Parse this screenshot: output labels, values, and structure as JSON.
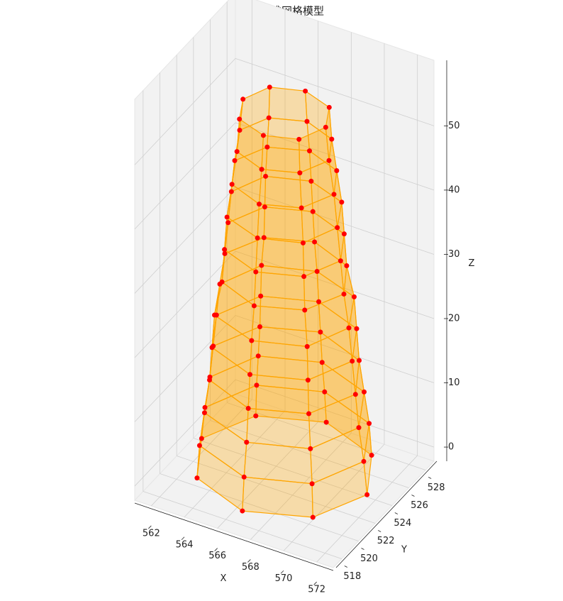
{
  "chart_data": {
    "type": "mesh3d",
    "title": "古塔三维网格模型",
    "x_label": "X",
    "y_label": "Y",
    "z_label": "Z",
    "xlim": [
      561,
      573
    ],
    "ylim": [
      517,
      529
    ],
    "zlim": [
      -2.2,
      60.2
    ],
    "xticks": [
      562,
      564,
      566,
      568,
      570,
      572
    ],
    "yticks": [
      518,
      520,
      522,
      524,
      526,
      528
    ],
    "zticks": [
      0,
      10,
      20,
      30,
      40,
      50
    ],
    "grid": true,
    "face_color": "#ffa500",
    "edge_color": "#ffa500",
    "point_color": "#ff0000",
    "rings": [
      {
        "z": 0,
        "x": [
          572,
          570.5,
          567,
          563.5,
          562,
          563.5,
          567,
          570.5
        ],
        "y": [
          523,
          526.5,
          528,
          526.5,
          523,
          519.5,
          518,
          519.5
        ]
      },
      {
        "z": 5,
        "x": [
          571.8,
          570.4,
          567,
          563.6,
          562.2,
          563.6,
          567,
          570.4
        ],
        "y": [
          523,
          526.4,
          527.8,
          526.4,
          523,
          519.6,
          518.2,
          519.6
        ]
      },
      {
        "z": 10,
        "x": [
          571.5,
          570.2,
          567,
          563.8,
          562.5,
          563.8,
          567,
          570.2
        ],
        "y": [
          523,
          526.2,
          527.5,
          526.2,
          523,
          519.8,
          518.5,
          519.8
        ]
      },
      {
        "z": 15,
        "x": [
          571.3,
          570,
          567,
          564,
          562.7,
          564,
          567,
          570
        ],
        "y": [
          523,
          526,
          527.3,
          526,
          523,
          520,
          518.7,
          520
        ]
      },
      {
        "z": 20,
        "x": [
          571.1,
          569.9,
          567,
          564.1,
          562.9,
          564.1,
          567,
          569.9
        ],
        "y": [
          523,
          525.9,
          527.1,
          525.9,
          523,
          520.1,
          518.9,
          520.1
        ]
      },
      {
        "z": 25,
        "x": [
          570.9,
          569.8,
          567,
          564.2,
          563.1,
          564.2,
          567,
          569.8
        ],
        "y": [
          523,
          525.8,
          526.9,
          525.8,
          523,
          520.2,
          519.1,
          520.2
        ]
      },
      {
        "z": 30,
        "x": [
          570.6,
          569.5,
          567,
          564.5,
          563.4,
          564.5,
          567,
          569.5
        ],
        "y": [
          523,
          525.5,
          526.6,
          525.5,
          523,
          520.5,
          519.4,
          520.5
        ]
      },
      {
        "z": 35,
        "x": [
          570.4,
          569.4,
          567,
          564.6,
          563.6,
          564.6,
          567,
          569.4
        ],
        "y": [
          523,
          525.4,
          526.4,
          525.4,
          523,
          520.6,
          519.6,
          520.6
        ]
      },
      {
        "z": 40,
        "x": [
          570.2,
          569.3,
          567,
          564.7,
          563.8,
          564.7,
          567,
          569.3
        ],
        "y": [
          523,
          525.3,
          526.2,
          525.3,
          523,
          520.7,
          519.8,
          520.7
        ]
      },
      {
        "z": 45,
        "x": [
          570,
          569.1,
          567,
          564.9,
          564,
          564.9,
          567,
          569.1
        ],
        "y": [
          523,
          525.1,
          526,
          525.1,
          523,
          520.9,
          520,
          520.9
        ]
      },
      {
        "z": 50,
        "x": [
          569.7,
          568.9,
          567,
          565.1,
          564.3,
          565.1,
          567,
          568.9
        ],
        "y": [
          523,
          524.9,
          525.7,
          524.9,
          523,
          521.1,
          520.3,
          521.1
        ]
      },
      {
        "z": 55,
        "x": [
          569.5,
          568.8,
          567,
          565.2,
          564.5,
          565.2,
          567,
          568.8
        ],
        "y": [
          523,
          524.8,
          525.5,
          524.8,
          523,
          521.2,
          520.5,
          521.2
        ]
      }
    ]
  }
}
